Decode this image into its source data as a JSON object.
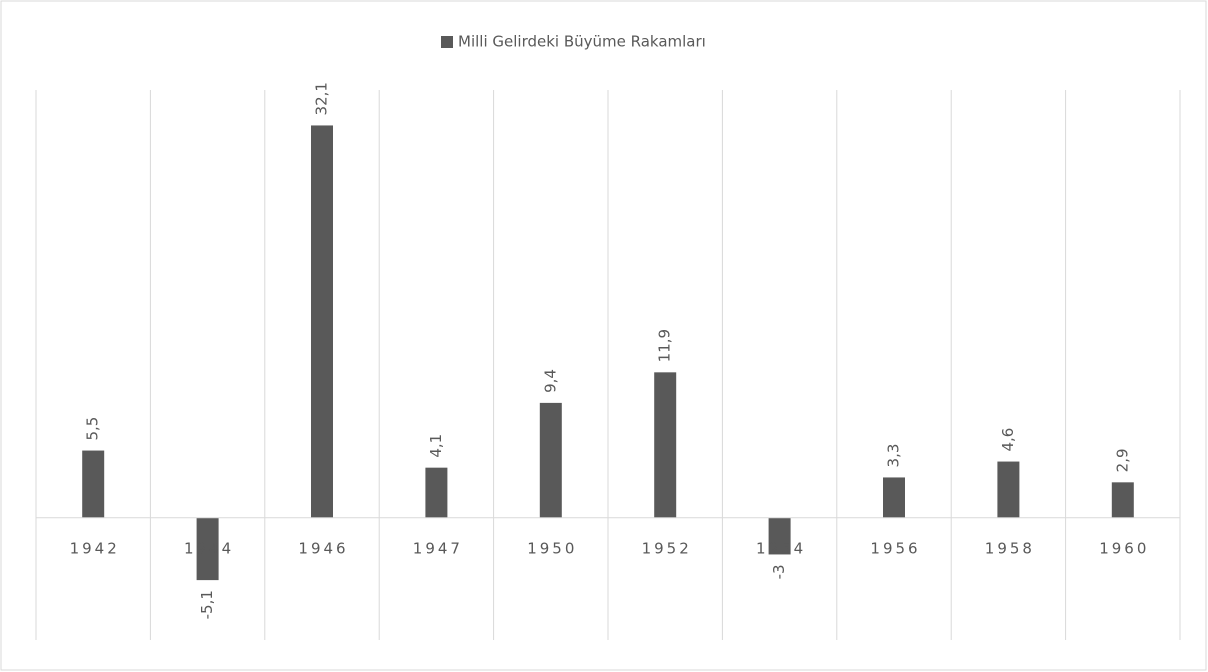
{
  "chart_data": {
    "type": "bar",
    "series": [
      {
        "name": "Milli Gelirdeki Büyüme Rakamları",
        "color": "#595959",
        "values": [
          5.5,
          -5.1,
          32.1,
          4.1,
          9.4,
          11.9,
          -3,
          3.3,
          4.6,
          2.9
        ],
        "value_labels": [
          "5,5",
          "-5,1",
          "32,1",
          "4,1",
          "9,4",
          "11,9",
          "-3",
          "3,3",
          "4,6",
          "2,9"
        ]
      }
    ],
    "categories": [
      "1942",
      "1944",
      "1946",
      "1947",
      "1950",
      "1952",
      "1954",
      "1956",
      "1958",
      "1960"
    ],
    "ylim": [
      -10,
      35
    ],
    "legend": "top"
  }
}
